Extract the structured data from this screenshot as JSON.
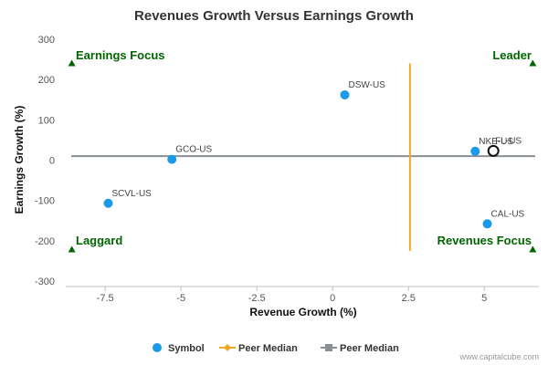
{
  "chart_data": {
    "type": "scatter",
    "title": "Revenues Growth Versus Earnings Growth",
    "xlabel": "Revenue Growth (%)",
    "ylabel": "Earnings Growth (%)",
    "xlim": [
      -8.8,
      6.8
    ],
    "ylim": [
      -300,
      300
    ],
    "xticks": [
      -7.5,
      -5,
      -2.5,
      0,
      2.5,
      5
    ],
    "xtick_labels": [
      "-7.5",
      "-5",
      "-2.5",
      "0",
      "2.5",
      "5"
    ],
    "yticks": [
      300,
      200,
      100,
      0,
      -100,
      -200,
      -300
    ],
    "ytick_labels": [
      "300",
      "200",
      "100",
      "0",
      "-100",
      "-200",
      "-300"
    ],
    "grid": false,
    "points": [
      {
        "label": "DSW-US",
        "x": 0.4,
        "y": 162
      },
      {
        "label": "GCO-US",
        "x": -5.3,
        "y": 2
      },
      {
        "label": "SCVL-US",
        "x": -7.4,
        "y": -107
      },
      {
        "label": "NKE-US",
        "x": 4.7,
        "y": 22
      },
      {
        "label": "CAL-US",
        "x": 5.1,
        "y": -158
      }
    ],
    "highlight_point": {
      "label": "FL-US",
      "x": 5.3,
      "y": 23
    },
    "peer_median_x": 2.55,
    "peer_median_y": 10,
    "peer_median_x_range": [
      -225,
      240
    ],
    "quadrant_markers": [
      {
        "x": -8.6,
        "y": 240
      },
      {
        "x": 6.6,
        "y": 240
      },
      {
        "x": -8.6,
        "y": -222
      },
      {
        "x": 6.6,
        "y": -222
      }
    ],
    "quadrant_labels": {
      "top_left": "Earnings Focus",
      "top_right": "Leader",
      "bottom_left": "Laggard",
      "bottom_right": "Revenues Focus"
    },
    "legend": [
      {
        "name": "Symbol",
        "color": "#1a9ae8"
      },
      {
        "name": "Peer Median",
        "color": "#f5a623"
      },
      {
        "name": "Peer Median",
        "color": "#8a8f96"
      }
    ],
    "legend_position": "bottom"
  },
  "colors": {
    "point": "#1a9ae8",
    "peer_x_line": "#f5a623",
    "peer_y_line": "#8a8f96",
    "quadrant": "#006400",
    "axis": "#c0c0c0"
  },
  "credit": "www.capitalcube.com"
}
